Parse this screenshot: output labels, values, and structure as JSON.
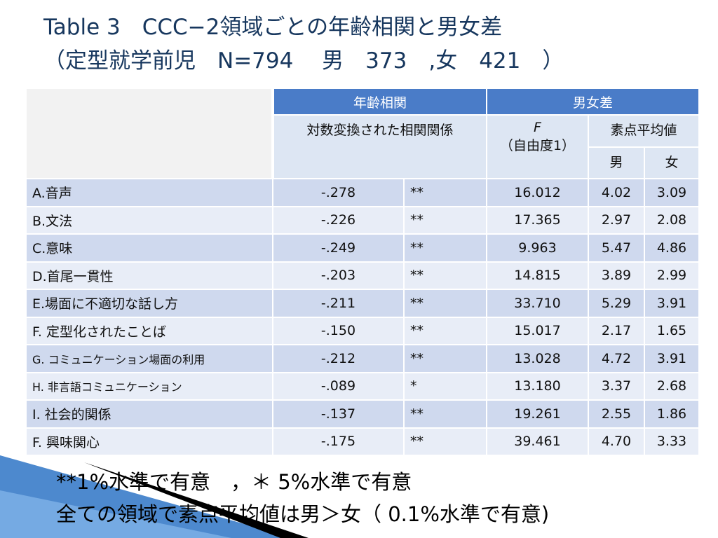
{
  "header": {
    "title": "Table 3　CCC−2領域ごとの年齢相関と男女差",
    "subtitle": "（定型就学前児　N=794　 男　373　,女　421　）"
  },
  "table": {
    "header": {
      "age_corr": "年齢相関",
      "sex_diff": "男女差",
      "log_corr": "対数変換された相関関係",
      "f": "F",
      "df": "（自由度1）",
      "raw_mean": "素点平均値",
      "male": "男",
      "female": "女"
    },
    "rows": [
      [
        "A.音声",
        "-.278",
        "**",
        "16.012",
        "4.02",
        "3.09"
      ],
      [
        "B.文法",
        "-.226",
        "**",
        "17.365",
        "2.97",
        "2.08"
      ],
      [
        "C.意味",
        "-.249",
        "**",
        "9.963",
        "5.47",
        "4.86"
      ],
      [
        "D.首尾一貫性",
        "-.203",
        "**",
        "14.815",
        "3.89",
        "2.99"
      ],
      [
        "E.場面に不適切な話し方",
        "-.211",
        "**",
        "33.710",
        "5.29",
        "3.91"
      ],
      [
        "F.  定型化されたことば",
        "-.150",
        "**",
        "15.017",
        "2.17",
        "1.65"
      ],
      [
        "G.  コミュニケーション場面の利用",
        "-.212",
        "**",
        "13.028",
        "4.72",
        "3.91"
      ],
      [
        "H.  非言語コミュニケーション",
        "-.089",
        "*",
        "13.180",
        "3.37",
        "2.68"
      ],
      [
        "I.  社会的関係",
        "-.137",
        "**",
        "19.261",
        "2.55",
        "1.86"
      ],
      [
        "F.  興味関心",
        "-.175",
        "**",
        "39.461",
        "4.70",
        "3.33"
      ]
    ]
  },
  "notes": [
    "**1%水準で有意　，＊ 5%水準で有意",
    "全ての領域で素点平均値は男＞女（ 0.1%水準で有意)"
  ]
}
